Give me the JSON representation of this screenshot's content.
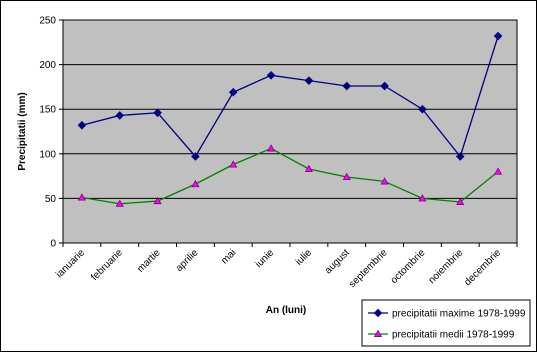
{
  "chart_data": {
    "type": "line",
    "title": "",
    "xlabel": "An (luni)",
    "ylabel": "Precipitatii (mm)",
    "categories": [
      "ianuarie",
      "februarie",
      "martie",
      "aprilie",
      "mai",
      "iunie",
      "iulie",
      "august",
      "septembrie",
      "octombrie",
      "noiembrie",
      "decembrie"
    ],
    "ylim": [
      0,
      250
    ],
    "yticks": [
      0,
      50,
      100,
      150,
      200,
      250
    ],
    "grid": true,
    "legend": "bottom-right",
    "series": [
      {
        "name": "precipitatii maxime 1978-1999",
        "color": "#000080",
        "marker": "diamond",
        "values": [
          132,
          143,
          146,
          97,
          169,
          188,
          182,
          176,
          176,
          150,
          97,
          232
        ]
      },
      {
        "name": "precipitatii medii 1978-1999",
        "color": "#008000",
        "marker": "triangle",
        "values": [
          51,
          44,
          47,
          66,
          88,
          106,
          83,
          74,
          69,
          50,
          46,
          80
        ]
      }
    ],
    "colors": {
      "plot_background": "#c0c0c0",
      "gridline": "#000000",
      "frame": "#000000"
    }
  }
}
